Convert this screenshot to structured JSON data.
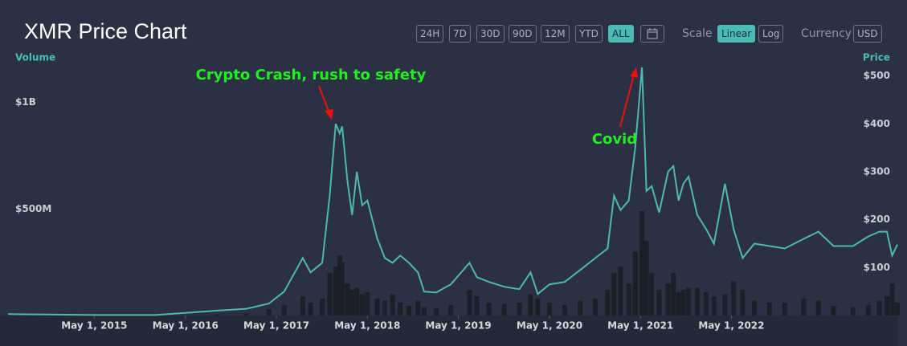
{
  "ui": {
    "title": "XMR Price Chart",
    "ranges": [
      "24H",
      "7D",
      "30D",
      "90D",
      "12M",
      "YTD",
      "ALL"
    ],
    "scale_label": "Scale",
    "scales": [
      "Linear",
      "Log"
    ],
    "currency_label": "Currency",
    "currency": "USD"
  },
  "chart_data": {
    "type": "line",
    "y_label": "Volume",
    "y2_label": "Price",
    "annotations": [
      "Crypto Crash, rush to safety",
      "Covid"
    ],
    "x": [
      "2014-05-20",
      "2015-05-01",
      "2016-01-01",
      "2016-09-01",
      "2017-01-01",
      "2017-04-01",
      "2017-06-01",
      "2017-08-15",
      "2017-09-15",
      "2017-11-01",
      "2017-12-01",
      "2017-12-25",
      "2018-01-10",
      "2018-01-20",
      "2018-02-10",
      "2018-03-01",
      "2018-03-20",
      "2018-04-10",
      "2018-05-01",
      "2018-06-10",
      "2018-07-10",
      "2018-08-10",
      "2018-09-10",
      "2018-10-15",
      "2018-11-20",
      "2018-12-15",
      "2019-02-01",
      "2019-04-01",
      "2019-06-15",
      "2019-07-15",
      "2019-09-01",
      "2019-11-01",
      "2020-01-01",
      "2020-02-15",
      "2020-03-15",
      "2020-05-01",
      "2020-07-01",
      "2020-09-01",
      "2020-11-01",
      "2020-12-20",
      "2021-01-15",
      "2021-02-10",
      "2021-03-15",
      "2021-04-10",
      "2021-05-07",
      "2021-05-25",
      "2021-06-15",
      "2021-07-15",
      "2021-08-20",
      "2021-09-10",
      "2021-10-01",
      "2021-10-20",
      "2021-11-10",
      "2021-12-15",
      "2022-01-20",
      "2022-02-20",
      "2022-04-05",
      "2022-05-10",
      "2022-06-15",
      "2022-08-01",
      "2022-10-01",
      "2022-12-01",
      "2023-02-15",
      "2023-04-15",
      "2023-06-15",
      "2023-09-01",
      "2023-11-01",
      "2023-12-15",
      "2024-01-15",
      "2024-02-05",
      "2024-02-26"
    ],
    "series": [
      {
        "name": "Volume",
        "type": "bar",
        "color": "#1b1f29",
        "values": [
          2000000,
          1000000,
          1000000,
          5000000,
          10000000,
          30000000,
          50000000,
          90000000,
          60000000,
          80000000,
          200000000,
          230000000,
          282000000,
          250000000,
          150000000,
          120000000,
          130000000,
          100000000,
          110000000,
          80000000,
          70000000,
          100000000,
          60000000,
          45000000,
          70000000,
          40000000,
          35000000,
          50000000,
          120000000,
          90000000,
          60000000,
          55000000,
          60000000,
          100000000,
          80000000,
          60000000,
          50000000,
          70000000,
          80000000,
          120000000,
          200000000,
          230000000,
          150000000,
          300000000,
          490000000,
          350000000,
          200000000,
          120000000,
          150000000,
          200000000,
          110000000,
          120000000,
          130000000,
          130000000,
          110000000,
          90000000,
          100000000,
          160000000,
          120000000,
          70000000,
          60000000,
          60000000,
          80000000,
          70000000,
          45000000,
          40000000,
          50000000,
          70000000,
          90000000,
          150000000,
          60000000
        ]
      },
      {
        "name": "Price",
        "type": "line",
        "axis": "y2",
        "color": "#4fb8b0",
        "values": [
          3,
          1,
          1,
          10,
          14,
          25,
          50,
          120,
          90,
          110,
          250,
          400,
          380,
          395,
          280,
          210,
          300,
          230,
          240,
          160,
          120,
          110,
          125,
          110,
          90,
          50,
          48,
          65,
          110,
          80,
          70,
          60,
          55,
          90,
          45,
          65,
          70,
          95,
          120,
          140,
          250,
          220,
          240,
          350,
          518,
          260,
          270,
          215,
          300,
          312,
          240,
          275,
          290,
          210,
          180,
          150,
          275,
          180,
          120,
          150,
          145,
          140,
          160,
          175,
          145,
          145,
          165,
          175,
          175,
          125,
          148
        ]
      }
    ],
    "xlim": [
      "2014-05-20",
      "2024-02-26"
    ],
    "xticks": [
      {
        "value": "2015-05-01",
        "label": "May 1, 2015"
      },
      {
        "value": "2016-05-01",
        "label": "May 1, 2016"
      },
      {
        "value": "2017-05-01",
        "label": "May 1, 2017"
      },
      {
        "value": "2018-05-01",
        "label": "May 1, 2018"
      },
      {
        "value": "2019-05-01",
        "label": "May 1, 2019"
      },
      {
        "value": "2020-05-01",
        "label": "May 1, 2020"
      },
      {
        "value": "2021-05-01",
        "label": "May 1, 2021"
      },
      {
        "value": "2022-05-01",
        "label": "May 1, 2022"
      }
    ],
    "ylim": [
      0,
      1210000000
    ],
    "yticks": [
      {
        "value": 500000000,
        "label": "$500M"
      },
      {
        "value": 1000000000,
        "label": "$1B"
      }
    ],
    "y2lim": [
      0,
      538
    ],
    "y2ticks": [
      {
        "value": 100,
        "label": "$100"
      },
      {
        "value": 200,
        "label": "$200"
      },
      {
        "value": 300,
        "label": "$300"
      },
      {
        "value": 400,
        "label": "$400"
      },
      {
        "value": 500,
        "label": "$500"
      }
    ]
  }
}
